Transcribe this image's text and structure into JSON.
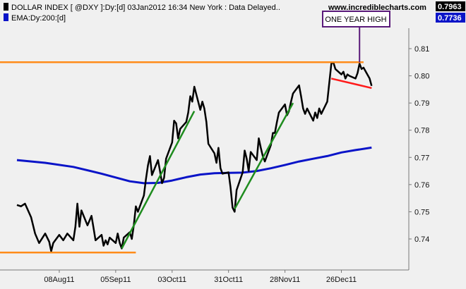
{
  "legend": {
    "title": "DOLLAR INDEX [ @DXY ]:Dy:[d]  03Jan2012 16:34 New York  : Data Delayed..",
    "ema": "EMA:Dy:200:[d]",
    "url": "www.incrediblecharts.com",
    "last_price": "0.7963",
    "last_ema": "0.7736"
  },
  "colors": {
    "background": "#f0f0f0",
    "price": "#000000",
    "ema": "#0a14c8",
    "trend_up": "#1e8c1e",
    "horizontal": "#ff8c1a",
    "trend_down": "#ff1a1a",
    "annotation": "#5a1a7a",
    "last_price_bg": "#000000",
    "last_ema_bg": "#0a14c8"
  },
  "chart_data": {
    "type": "line",
    "title": "DOLLAR INDEX [ @DXY ]:Dy:[d]  03Jan2012 16:34 New York  : Data Delayed..",
    "xlabel": "",
    "ylabel": "",
    "ylim": [
      0.73,
      0.82
    ],
    "yticks": [
      0.74,
      0.75,
      0.76,
      0.77,
      0.78,
      0.79,
      0.8,
      0.81
    ],
    "ytick_labels": [
      "0.74",
      "0.75",
      "0.76",
      "0.77",
      "0.78",
      "0.79",
      "0.80",
      "0.81"
    ],
    "x_range": [
      "2011-07-18",
      "2012-01-26"
    ],
    "xticks": [
      "2011-08-08",
      "2011-09-05",
      "2011-10-03",
      "2011-10-31",
      "2011-11-28",
      "2011-12-26"
    ],
    "xtick_labels": [
      "08Aug11",
      "05Sep11",
      "03Oct11",
      "31Oct11",
      "28Nov11",
      "26Dec11"
    ],
    "grid": false,
    "legend_position": "top-left",
    "series": [
      {
        "name": "DOLLAR INDEX",
        "color": "#000000",
        "points": [
          [
            "2011-07-18",
            0.7525
          ],
          [
            "2011-07-20",
            0.752
          ],
          [
            "2011-07-22",
            0.753
          ],
          [
            "2011-07-25",
            0.748
          ],
          [
            "2011-07-27",
            0.742
          ],
          [
            "2011-07-29",
            0.7385
          ],
          [
            "2011-08-01",
            0.742
          ],
          [
            "2011-08-03",
            0.739
          ],
          [
            "2011-08-04",
            0.7355
          ],
          [
            "2011-08-05",
            0.7385
          ],
          [
            "2011-08-08",
            0.7415
          ],
          [
            "2011-08-10",
            0.7395
          ],
          [
            "2011-08-12",
            0.742
          ],
          [
            "2011-08-15",
            0.7395
          ],
          [
            "2011-08-16",
            0.7445
          ],
          [
            "2011-08-17",
            0.753
          ],
          [
            "2011-08-18",
            0.7445
          ],
          [
            "2011-08-19",
            0.7505
          ],
          [
            "2011-08-22",
            0.745
          ],
          [
            "2011-08-24",
            0.7485
          ],
          [
            "2011-08-25",
            0.744
          ],
          [
            "2011-08-26",
            0.7395
          ],
          [
            "2011-08-29",
            0.7415
          ],
          [
            "2011-08-30",
            0.7375
          ],
          [
            "2011-08-31",
            0.7395
          ],
          [
            "2011-09-01",
            0.738
          ],
          [
            "2011-09-02",
            0.7405
          ],
          [
            "2011-09-05",
            0.7385
          ],
          [
            "2011-09-06",
            0.742
          ],
          [
            "2011-09-07",
            0.7385
          ],
          [
            "2011-09-08",
            0.7365
          ],
          [
            "2011-09-09",
            0.7405
          ],
          [
            "2011-09-12",
            0.7425
          ],
          [
            "2011-09-13",
            0.74
          ],
          [
            "2011-09-14",
            0.745
          ],
          [
            "2011-09-15",
            0.752
          ],
          [
            "2011-09-16",
            0.75
          ],
          [
            "2011-09-19",
            0.756
          ],
          [
            "2011-09-20",
            0.762
          ],
          [
            "2011-09-21",
            0.767
          ],
          [
            "2011-09-22",
            0.7705
          ],
          [
            "2011-09-23",
            0.7635
          ],
          [
            "2011-09-26",
            0.769
          ],
          [
            "2011-09-27",
            0.765
          ],
          [
            "2011-09-28",
            0.7605
          ],
          [
            "2011-09-29",
            0.7625
          ],
          [
            "2011-09-30",
            0.7695
          ],
          [
            "2011-10-03",
            0.7755
          ],
          [
            "2011-10-04",
            0.7835
          ],
          [
            "2011-10-05",
            0.7825
          ],
          [
            "2011-10-06",
            0.777
          ],
          [
            "2011-10-07",
            0.7805
          ],
          [
            "2011-10-10",
            0.783
          ],
          [
            "2011-10-11",
            0.7865
          ],
          [
            "2011-10-12",
            0.7925
          ],
          [
            "2011-10-13",
            0.7905
          ],
          [
            "2011-10-14",
            0.796
          ],
          [
            "2011-10-17",
            0.7875
          ],
          [
            "2011-10-18",
            0.7905
          ],
          [
            "2011-10-19",
            0.788
          ],
          [
            "2011-10-20",
            0.783
          ],
          [
            "2011-10-21",
            0.775
          ],
          [
            "2011-10-24",
            0.7715
          ],
          [
            "2011-10-25",
            0.768
          ],
          [
            "2011-10-26",
            0.7735
          ],
          [
            "2011-10-27",
            0.766
          ],
          [
            "2011-10-28",
            0.764
          ],
          [
            "2011-10-31",
            0.7645
          ],
          [
            "2011-11-01",
            0.759
          ],
          [
            "2011-11-02",
            0.7515
          ],
          [
            "2011-11-03",
            0.75
          ],
          [
            "2011-11-04",
            0.758
          ],
          [
            "2011-11-07",
            0.7645
          ],
          [
            "2011-11-08",
            0.7725
          ],
          [
            "2011-11-09",
            0.7695
          ],
          [
            "2011-11-10",
            0.765
          ],
          [
            "2011-11-11",
            0.772
          ],
          [
            "2011-11-14",
            0.769
          ],
          [
            "2011-11-15",
            0.777
          ],
          [
            "2011-11-16",
            0.7735
          ],
          [
            "2011-11-17",
            0.7705
          ],
          [
            "2011-11-18",
            0.7685
          ],
          [
            "2011-11-21",
            0.7745
          ],
          [
            "2011-11-22",
            0.779
          ],
          [
            "2011-11-23",
            0.779
          ],
          [
            "2011-11-24",
            0.783
          ],
          [
            "2011-11-25",
            0.7865
          ],
          [
            "2011-11-28",
            0.7895
          ],
          [
            "2011-11-29",
            0.7855
          ],
          [
            "2011-11-30",
            0.787
          ],
          [
            "2011-12-01",
            0.7905
          ],
          [
            "2011-12-02",
            0.7935
          ],
          [
            "2011-12-05",
            0.7965
          ],
          [
            "2011-12-06",
            0.7925
          ],
          [
            "2011-12-07",
            0.788
          ],
          [
            "2011-12-08",
            0.786
          ],
          [
            "2011-12-09",
            0.788
          ],
          [
            "2011-12-12",
            0.7835
          ],
          [
            "2011-12-13",
            0.7865
          ],
          [
            "2011-12-14",
            0.7845
          ],
          [
            "2011-12-15",
            0.788
          ],
          [
            "2011-12-16",
            0.786
          ],
          [
            "2011-12-19",
            0.7905
          ],
          [
            "2011-12-20",
            0.7975
          ],
          [
            "2011-12-21",
            0.8045
          ],
          [
            "2011-12-22",
            0.805
          ],
          [
            "2011-12-23",
            0.8025
          ],
          [
            "2011-12-26",
            0.8005
          ],
          [
            "2011-12-27",
            0.8015
          ],
          [
            "2011-12-28",
            0.799
          ],
          [
            "2011-12-29",
            0.8005
          ],
          [
            "2011-12-30",
            0.8
          ],
          [
            "2012-01-02",
            0.799
          ],
          [
            "2012-01-03",
            0.801
          ],
          [
            "2012-01-04",
            0.8045
          ],
          [
            "2012-01-05",
            0.8025
          ],
          [
            "2012-01-06",
            0.803
          ],
          [
            "2012-01-09",
            0.799
          ],
          [
            "2012-01-10",
            0.7963
          ]
        ]
      },
      {
        "name": "EMA:Dy:200:[d]",
        "color": "#0a14c8",
        "points": [
          [
            "2011-07-18",
            0.769
          ],
          [
            "2011-08-01",
            0.768
          ],
          [
            "2011-08-15",
            0.7665
          ],
          [
            "2011-08-29",
            0.764
          ],
          [
            "2011-09-12",
            0.7612
          ],
          [
            "2011-09-19",
            0.7605
          ],
          [
            "2011-09-26",
            0.7606
          ],
          [
            "2011-10-03",
            0.7615
          ],
          [
            "2011-10-10",
            0.7627
          ],
          [
            "2011-10-17",
            0.7637
          ],
          [
            "2011-10-24",
            0.7642
          ],
          [
            "2011-10-31",
            0.7643
          ],
          [
            "2011-11-07",
            0.7644
          ],
          [
            "2011-11-14",
            0.765
          ],
          [
            "2011-11-21",
            0.766
          ],
          [
            "2011-11-28",
            0.7672
          ],
          [
            "2011-12-05",
            0.7685
          ],
          [
            "2011-12-12",
            0.7695
          ],
          [
            "2011-12-19",
            0.7705
          ],
          [
            "2011-12-26",
            0.7718
          ],
          [
            "2012-01-02",
            0.7727
          ],
          [
            "2012-01-10",
            0.7736
          ]
        ]
      }
    ],
    "annotations": {
      "lines": [
        {
          "kind": "horizontal",
          "color": "#ff8c1a",
          "points": [
            [
              "2011-07-18",
              0.805
            ],
            [
              "2012-01-06",
              0.805
            ]
          ]
        },
        {
          "kind": "horizontal",
          "color": "#ff8c1a",
          "points": [
            [
              "2011-07-18",
              0.735
            ],
            [
              "2011-09-15",
              0.735
            ]
          ]
        },
        {
          "kind": "trend",
          "color": "#1e8c1e",
          "points": [
            [
              "2011-09-08",
              0.7365
            ],
            [
              "2011-10-14",
              0.787
            ]
          ]
        },
        {
          "kind": "trend",
          "color": "#1e8c1e",
          "points": [
            [
              "2011-11-03",
              0.751
            ],
            [
              "2011-12-02",
              0.79
            ]
          ]
        },
        {
          "kind": "trend",
          "color": "#ff1a1a",
          "points": [
            [
              "2011-12-21",
              0.799
            ],
            [
              "2012-01-10",
              0.7955
            ]
          ]
        }
      ],
      "label": {
        "text": "ONE YEAR HIGH",
        "color": "#5a1a7a",
        "pointer_date": "2012-01-04",
        "pointer_value": 0.805
      }
    }
  }
}
